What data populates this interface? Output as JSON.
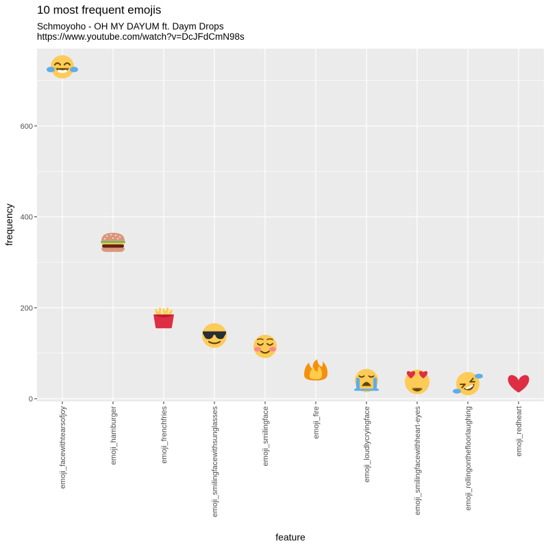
{
  "chart_data": {
    "type": "scatter",
    "title": "10 most frequent emojis",
    "subtitle_lines": [
      "Schmoyoho - OH MY DAYUM ft. Daym Drops",
      "https://www.youtube.com/watch?v=DcJFdCmN98s"
    ],
    "xlabel": "feature",
    "ylabel": "frequency",
    "categories": [
      "emoji_facewithtearsofjoy",
      "emoji_hamburger",
      "emoji_frenchfries",
      "emoji_smilingfacewithsunglasses",
      "emoji_smilingface",
      "emoji_fire",
      "emoji_loudlycryingface",
      "emoji_smilingfacewithheart-eyes",
      "emoji_rollingonthefloorlaughing",
      "emoji_redheart"
    ],
    "values": [
      730,
      344,
      176,
      139,
      115,
      61,
      40,
      37,
      33,
      33
    ],
    "markers": [
      "face-with-tears-of-joy-icon",
      "hamburger-icon",
      "french-fries-icon",
      "smiling-face-with-sunglasses-icon",
      "smiling-face-icon",
      "fire-icon",
      "loudly-crying-face-icon",
      "smiling-face-with-heart-eyes-icon",
      "rolling-on-the-floor-laughing-icon",
      "red-heart-icon"
    ],
    "yticks": [
      0,
      200,
      400,
      600
    ],
    "ylim": [
      -6,
      770
    ],
    "grid": true,
    "panel_background": "#ebebeb",
    "grid_color": "#ffffff"
  }
}
